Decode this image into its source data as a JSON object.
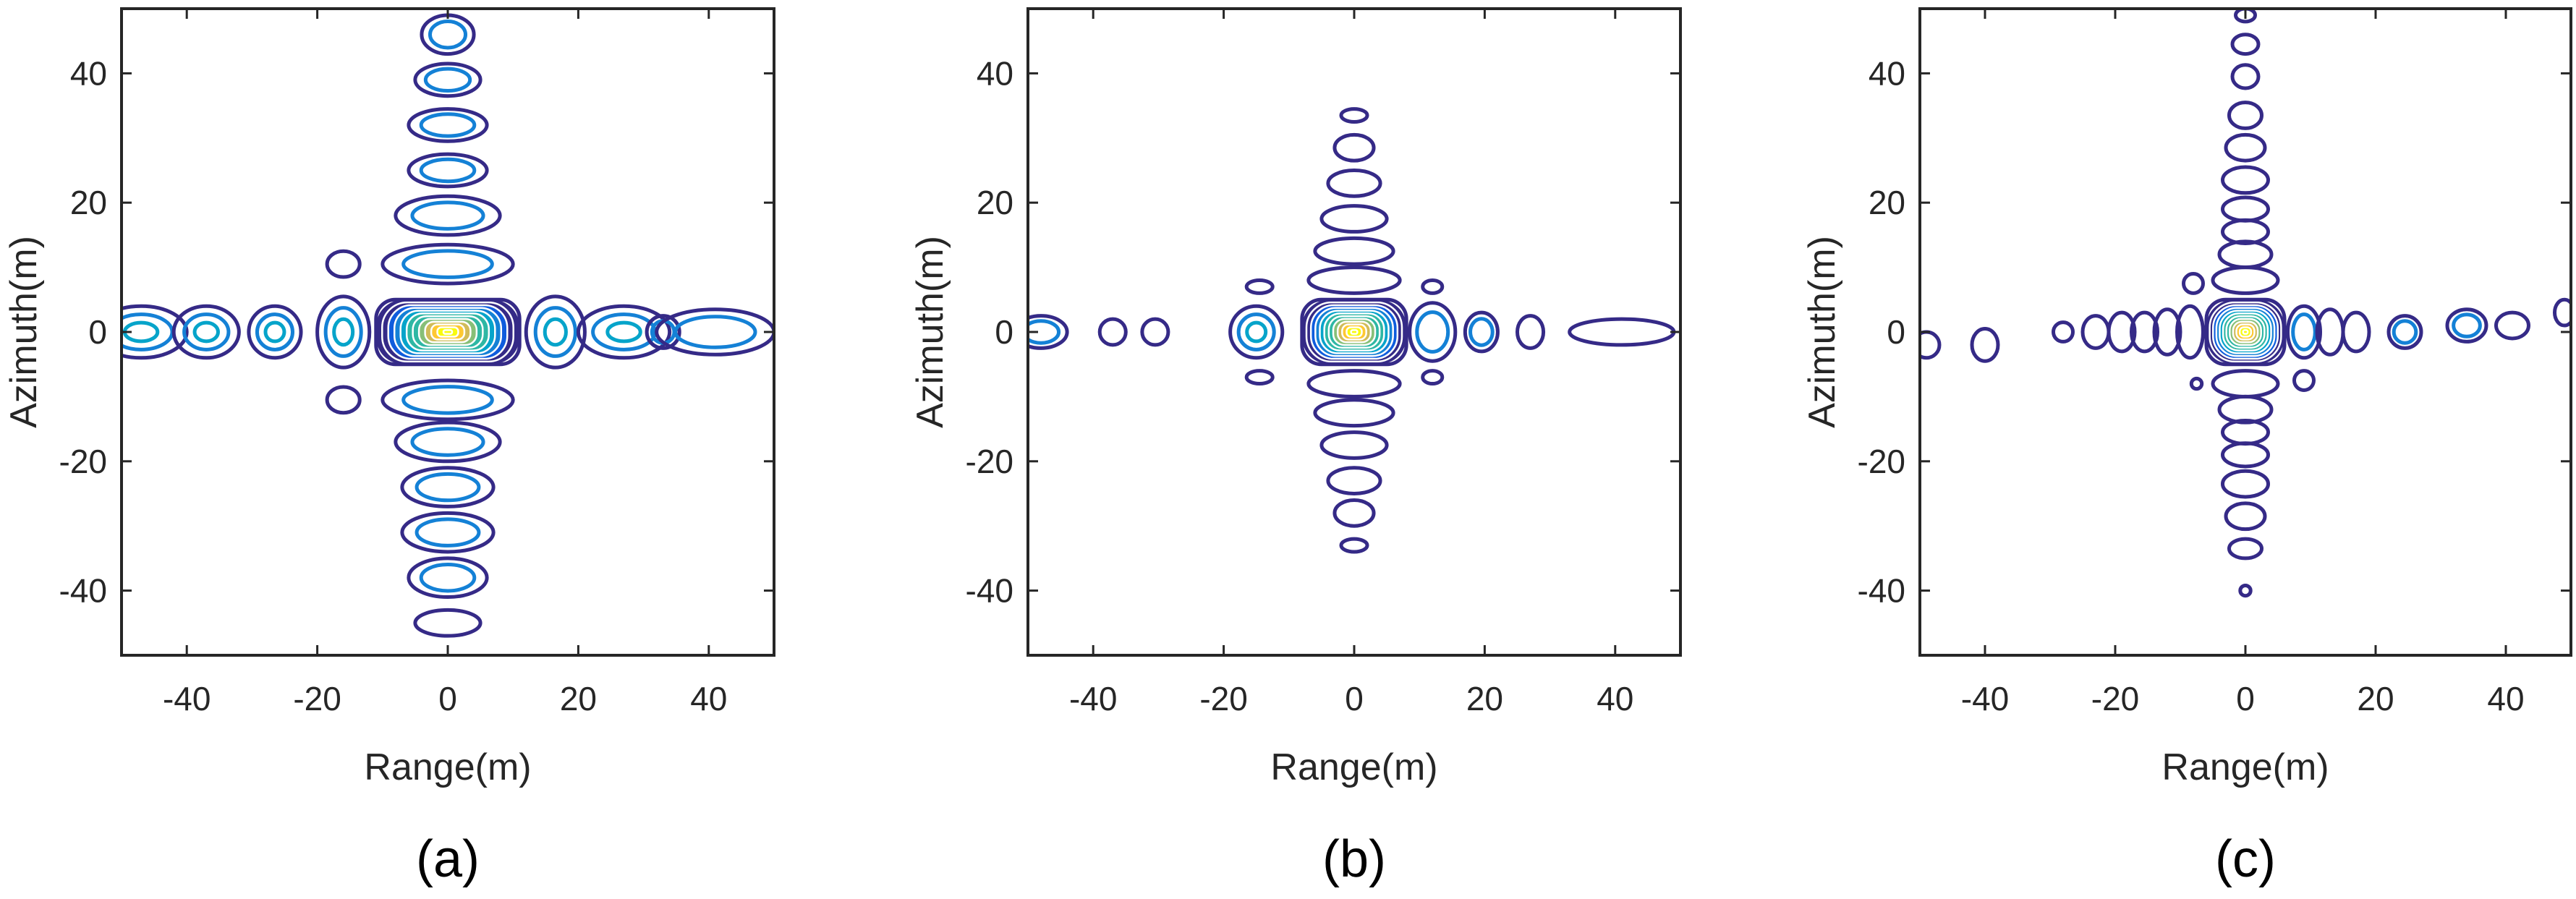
{
  "chart_data": [
    {
      "type": "contour",
      "caption": "(a)",
      "xlabel": "Range(m)",
      "ylabel": "Azimuth(m)",
      "xlim": [
        -50,
        50
      ],
      "ylim": [
        -50,
        50
      ],
      "xticks": [
        -40,
        -20,
        0,
        20,
        40
      ],
      "yticks": [
        -40,
        -20,
        0,
        20,
        40
      ],
      "grid": false,
      "colormap": "parula",
      "peak": {
        "x": 0,
        "y": 0
      },
      "mainlobe": {
        "range_halfwidth": 11,
        "azimuth_halfwidth": 5
      },
      "range_sidelobes": [
        {
          "x": -47,
          "y": 0,
          "w": 7,
          "h": 4
        },
        {
          "x": -37,
          "y": 0,
          "w": 5,
          "h": 4
        },
        {
          "x": -26.5,
          "y": 0,
          "w": 4,
          "h": 4
        },
        {
          "x": -16,
          "y": 0,
          "w": 4,
          "h": 5.5
        },
        {
          "x": 16.5,
          "y": 0,
          "w": 4.5,
          "h": 5.5
        },
        {
          "x": 27,
          "y": 0,
          "w": 7,
          "h": 4
        },
        {
          "x": 33,
          "y": 0,
          "w": 2.5,
          "h": 2.5
        },
        {
          "x": 41,
          "y": 0,
          "w": 9,
          "h": 3.5
        },
        {
          "x": -16,
          "y": 10.5,
          "w": 2.5,
          "h": 2
        },
        {
          "x": -16,
          "y": -10.5,
          "w": 2.5,
          "h": 2
        }
      ],
      "azimuth_sidelobes": [
        {
          "x": 0,
          "y": 10.5,
          "w": 10,
          "h": 3
        },
        {
          "x": 0,
          "y": -10.5,
          "w": 10,
          "h": 3
        },
        {
          "x": 0,
          "y": 18,
          "w": 8,
          "h": 3
        },
        {
          "x": 0,
          "y": -17,
          "w": 8,
          "h": 3
        },
        {
          "x": 0,
          "y": 25,
          "w": 6,
          "h": 2.5
        },
        {
          "x": 0,
          "y": -24,
          "w": 7,
          "h": 3
        },
        {
          "x": 0,
          "y": 32,
          "w": 6,
          "h": 2.5
        },
        {
          "x": 0,
          "y": -31,
          "w": 7,
          "h": 3
        },
        {
          "x": 0,
          "y": 39,
          "w": 5,
          "h": 2.5
        },
        {
          "x": 0,
          "y": -38,
          "w": 6,
          "h": 3
        },
        {
          "x": 0,
          "y": 46,
          "w": 4,
          "h": 3
        },
        {
          "x": 0,
          "y": -45,
          "w": 5,
          "h": 2
        }
      ]
    },
    {
      "type": "contour",
      "caption": "(b)",
      "xlabel": "Range(m)",
      "ylabel": "Azimuth(m)",
      "xlim": [
        -50,
        50
      ],
      "ylim": [
        -50,
        50
      ],
      "xticks": [
        -40,
        -20,
        0,
        20,
        40
      ],
      "yticks": [
        -40,
        -20,
        0,
        20,
        40
      ],
      "grid": false,
      "colormap": "parula",
      "peak": {
        "x": 0,
        "y": 0
      },
      "mainlobe": {
        "range_halfwidth": 8,
        "azimuth_halfwidth": 5
      },
      "range_sidelobes": [
        {
          "x": -48,
          "y": 0,
          "w": 4,
          "h": 2.5
        },
        {
          "x": -37,
          "y": 0,
          "w": 2,
          "h": 2
        },
        {
          "x": -30.5,
          "y": 0,
          "w": 2,
          "h": 2
        },
        {
          "x": -15,
          "y": 0,
          "w": 4,
          "h": 4
        },
        {
          "x": 12,
          "y": 0,
          "w": 3.5,
          "h": 4.5
        },
        {
          "x": 19.5,
          "y": 0,
          "w": 2.5,
          "h": 3
        },
        {
          "x": 27,
          "y": 0,
          "w": 2,
          "h": 2.5
        },
        {
          "x": 41,
          "y": 0,
          "w": 8,
          "h": 2
        },
        {
          "x": -14.5,
          "y": 7,
          "w": 2,
          "h": 1
        },
        {
          "x": -14.5,
          "y": -7,
          "w": 2,
          "h": 1
        },
        {
          "x": 12,
          "y": 7,
          "w": 1.5,
          "h": 1
        },
        {
          "x": 12,
          "y": -7,
          "w": 1.5,
          "h": 1
        }
      ],
      "azimuth_sidelobes": [
        {
          "x": 0,
          "y": 8,
          "w": 7,
          "h": 2
        },
        {
          "x": 0,
          "y": -8,
          "w": 7,
          "h": 2
        },
        {
          "x": 0,
          "y": 12.5,
          "w": 6,
          "h": 2
        },
        {
          "x": 0,
          "y": -12.5,
          "w": 6,
          "h": 2
        },
        {
          "x": 0,
          "y": 17.5,
          "w": 5,
          "h": 2
        },
        {
          "x": 0,
          "y": -17.5,
          "w": 5,
          "h": 2
        },
        {
          "x": 0,
          "y": 23,
          "w": 4,
          "h": 2
        },
        {
          "x": 0,
          "y": -23,
          "w": 4,
          "h": 2
        },
        {
          "x": 0,
          "y": 28.5,
          "w": 3,
          "h": 2
        },
        {
          "x": 0,
          "y": -28,
          "w": 3,
          "h": 2
        },
        {
          "x": 0,
          "y": 33.5,
          "w": 2,
          "h": 1
        },
        {
          "x": 0,
          "y": -33,
          "w": 2,
          "h": 1
        }
      ]
    },
    {
      "type": "contour",
      "caption": "(c)",
      "xlabel": "Range(m)",
      "ylabel": "Azimuth(m)",
      "xlim": [
        -50,
        50
      ],
      "ylim": [
        -50,
        50
      ],
      "xticks": [
        -40,
        -20,
        0,
        20,
        40
      ],
      "yticks": [
        -40,
        -20,
        0,
        20,
        40
      ],
      "grid": false,
      "colormap": "parula",
      "peak": {
        "x": 0,
        "y": 0
      },
      "mainlobe": {
        "range_halfwidth": 6,
        "azimuth_halfwidth": 5
      },
      "range_sidelobes": [
        {
          "x": -49,
          "y": -2,
          "w": 2,
          "h": 2
        },
        {
          "x": -40,
          "y": -2,
          "w": 2,
          "h": 2.5
        },
        {
          "x": -28,
          "y": 0,
          "w": 1.5,
          "h": 1.5
        },
        {
          "x": -23,
          "y": 0,
          "w": 2,
          "h": 2.5
        },
        {
          "x": -19,
          "y": 0,
          "w": 2,
          "h": 3
        },
        {
          "x": -15.5,
          "y": 0,
          "w": 2,
          "h": 3
        },
        {
          "x": -12,
          "y": 0,
          "w": 2,
          "h": 3.5
        },
        {
          "x": -8.5,
          "y": 0,
          "w": 2,
          "h": 4
        },
        {
          "x": 9,
          "y": 0,
          "w": 2.5,
          "h": 4
        },
        {
          "x": 13,
          "y": 0,
          "w": 2,
          "h": 3.5
        },
        {
          "x": 17,
          "y": 0,
          "w": 2,
          "h": 3
        },
        {
          "x": 24.5,
          "y": 0,
          "w": 2.5,
          "h": 2.5
        },
        {
          "x": 34,
          "y": 1,
          "w": 3,
          "h": 2.5
        },
        {
          "x": 41,
          "y": 1,
          "w": 2.5,
          "h": 2
        },
        {
          "x": 49,
          "y": 3,
          "w": 1.5,
          "h": 2
        },
        {
          "x": -8,
          "y": 7.5,
          "w": 1.5,
          "h": 1.5
        },
        {
          "x": 9,
          "y": -7.5,
          "w": 1.5,
          "h": 1.5
        },
        {
          "x": -7.5,
          "y": -8,
          "w": 0.8,
          "h": 0.8
        }
      ],
      "azimuth_sidelobes": [
        {
          "x": 0,
          "y": 8,
          "w": 5,
          "h": 2
        },
        {
          "x": 0,
          "y": -8,
          "w": 5,
          "h": 2
        },
        {
          "x": 0,
          "y": 12,
          "w": 4,
          "h": 2
        },
        {
          "x": 0,
          "y": -12,
          "w": 4,
          "h": 2
        },
        {
          "x": 0,
          "y": 15.5,
          "w": 3.5,
          "h": 1.8
        },
        {
          "x": 0,
          "y": -15.5,
          "w": 3.5,
          "h": 1.8
        },
        {
          "x": 0,
          "y": 19,
          "w": 3.5,
          "h": 1.8
        },
        {
          "x": 0,
          "y": -19,
          "w": 3.5,
          "h": 1.8
        },
        {
          "x": 0,
          "y": 23.5,
          "w": 3.5,
          "h": 2
        },
        {
          "x": 0,
          "y": -23.5,
          "w": 3.5,
          "h": 2
        },
        {
          "x": 0,
          "y": 28.5,
          "w": 3,
          "h": 2
        },
        {
          "x": 0,
          "y": -28.5,
          "w": 3,
          "h": 2
        },
        {
          "x": 0,
          "y": 33.5,
          "w": 2.5,
          "h": 2
        },
        {
          "x": 0,
          "y": -33.5,
          "w": 2.5,
          "h": 1.5
        },
        {
          "x": 0,
          "y": 39.5,
          "w": 2,
          "h": 1.8
        },
        {
          "x": 0,
          "y": 44.5,
          "w": 2,
          "h": 1.5
        },
        {
          "x": 0,
          "y": 49,
          "w": 1.5,
          "h": 1
        },
        {
          "x": 0,
          "y": -40,
          "w": 0.8,
          "h": 0.8
        }
      ]
    }
  ]
}
